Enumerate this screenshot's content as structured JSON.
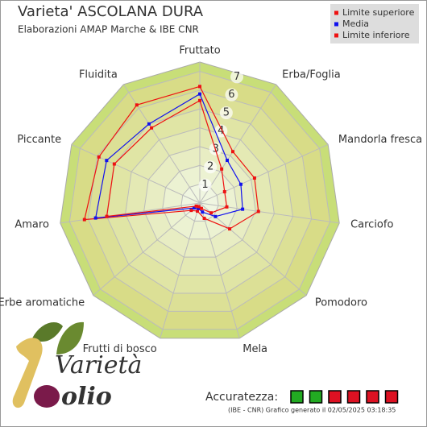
{
  "chart_data": {
    "type": "radar",
    "title": "Varieta' ASCOLANA DURA",
    "subtitle": "Elaborazioni AMAP Marche & IBE CNR",
    "categories": [
      "Fruttato",
      "Erba/Foglia",
      "Mandorla fresca",
      "Carciofo",
      "Pomodoro",
      "Mela",
      "Frutti di bosco",
      "Erbe aromatiche",
      "Amaro",
      "Piccante",
      "Fluidita"
    ],
    "series": [
      {
        "name": "Limite superiore",
        "color": "#ee1111",
        "values": [
          6.2,
          3.25,
          3.2,
          3.15,
          2.1,
          0.85,
          0.45,
          0.6,
          6.2,
          5.9,
          6.2
        ]
      },
      {
        "name": "Media",
        "color": "#1111ee",
        "values": [
          5.8,
          2.7,
          2.4,
          2.3,
          1.1,
          0.5,
          0.3,
          0.4,
          5.6,
          5.45,
          5.0
        ]
      },
      {
        "name": "Limite inferiore",
        "color": "#ee1111",
        "values": [
          5.45,
          2.15,
          1.45,
          1.45,
          0.8,
          0.3,
          0.2,
          0.25,
          5.0,
          5.0,
          4.75
        ]
      }
    ],
    "rlim": [
      0,
      7.5
    ],
    "rticks": [
      1,
      2,
      3,
      4,
      5,
      6,
      7
    ],
    "legend": "top-right",
    "accuracy": {
      "label": "Accuratezza:",
      "colors": [
        "#22aa22",
        "#22aa22",
        "#dd1122",
        "#dd1122",
        "#dd1122",
        "#dd1122"
      ]
    },
    "footnote": "(IBE - CNR) Grafico generato il 02/05/2025 03:18:35",
    "logo": {
      "word1": "Varietà",
      "word2": "olio"
    }
  }
}
